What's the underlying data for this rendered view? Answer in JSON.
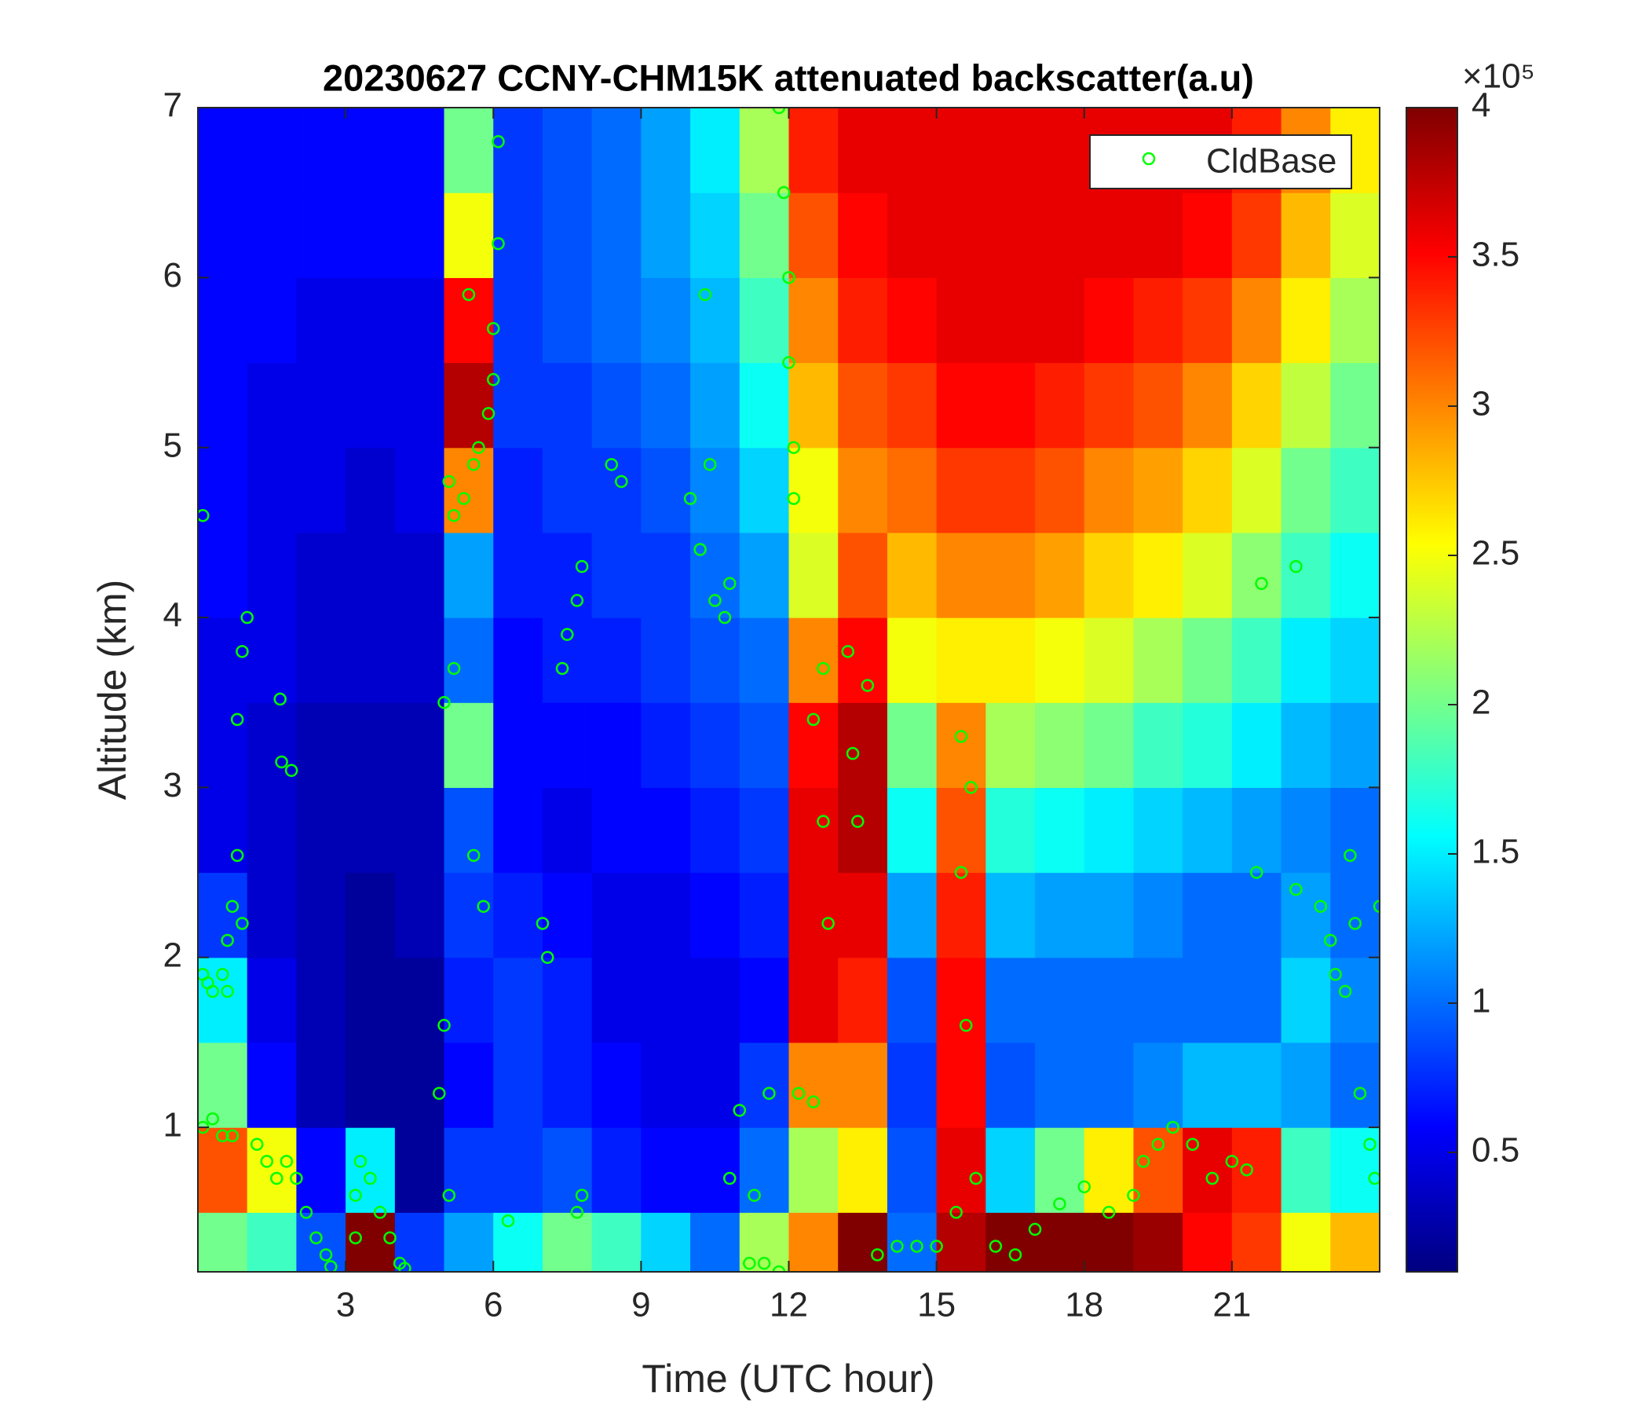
{
  "chart_data": {
    "type": "heatmap",
    "title": "20230627 CCNY-CHM15K attenuated backscatter(a.u)",
    "xlabel": "Time (UTC hour)",
    "ylabel": "Altitude (km)",
    "colorbar_multiplier": "×10⁵",
    "xlim": [
      0,
      24
    ],
    "xticks": [
      3,
      6,
      9,
      12,
      15,
      18,
      21
    ],
    "ylim": [
      0.15,
      7
    ],
    "yticks": [
      1,
      2,
      3,
      4,
      5,
      6,
      7
    ],
    "clim": [
      0.1,
      4
    ],
    "cticks": [
      0.5,
      1,
      1.5,
      2,
      2.5,
      3,
      3.5,
      4
    ],
    "colormap": "jet",
    "legend": "upper right",
    "x": [
      0.5,
      1.5,
      2.5,
      3.5,
      4.5,
      5.5,
      6.5,
      7.5,
      8.5,
      9.5,
      10.5,
      11.5,
      12.5,
      13.5,
      14.5,
      15.5,
      16.5,
      17.5,
      18.5,
      19.5,
      20.5,
      21.5,
      22.5,
      23.5
    ],
    "y": [
      0.25,
      0.75,
      1.25,
      1.75,
      2.25,
      2.75,
      3.25,
      3.75,
      4.25,
      4.75,
      5.25,
      5.75,
      6.25,
      6.75
    ],
    "z": [
      [
        2.0,
        1.8,
        0.9,
        4.0,
        0.8,
        1.2,
        1.6,
        2.0,
        1.8,
        1.4,
        1.0,
        2.2,
        3.0,
        4.0,
        1.0,
        3.8,
        4.0,
        4.0,
        4.0,
        3.9,
        3.5,
        3.3,
        2.5,
        2.8
      ],
      [
        3.2,
        2.5,
        0.6,
        1.5,
        0.2,
        0.8,
        0.8,
        0.9,
        0.7,
        0.6,
        0.6,
        1.0,
        2.2,
        2.6,
        0.9,
        3.6,
        1.4,
        2.0,
        2.6,
        3.2,
        3.6,
        3.4,
        1.8,
        1.6
      ],
      [
        2.0,
        0.6,
        0.3,
        0.2,
        0.2,
        0.6,
        0.8,
        0.7,
        0.6,
        0.5,
        0.5,
        0.8,
        3.0,
        3.0,
        0.8,
        3.5,
        0.9,
        1.0,
        1.0,
        1.1,
        1.3,
        1.3,
        1.2,
        1.0
      ],
      [
        1.5,
        0.5,
        0.3,
        0.2,
        0.2,
        0.7,
        0.8,
        0.7,
        0.5,
        0.5,
        0.5,
        0.6,
        3.6,
        3.4,
        0.9,
        3.5,
        1.0,
        1.0,
        1.0,
        1.0,
        1.0,
        1.0,
        1.4,
        1.1
      ],
      [
        0.8,
        0.4,
        0.3,
        0.2,
        0.3,
        0.8,
        0.7,
        0.6,
        0.5,
        0.5,
        0.6,
        0.7,
        3.6,
        3.6,
        1.2,
        3.4,
        1.3,
        1.2,
        1.2,
        1.1,
        1.0,
        1.0,
        1.2,
        1.0
      ],
      [
        0.5,
        0.4,
        0.3,
        0.3,
        0.3,
        0.9,
        0.6,
        0.5,
        0.6,
        0.6,
        0.7,
        0.8,
        3.6,
        3.8,
        1.6,
        3.2,
        1.7,
        1.6,
        1.5,
        1.4,
        1.3,
        1.2,
        1.1,
        1.0
      ],
      [
        0.5,
        0.4,
        0.3,
        0.3,
        0.3,
        2.0,
        0.6,
        0.6,
        0.6,
        0.7,
        0.8,
        0.9,
        3.5,
        3.8,
        2.0,
        3.0,
        2.2,
        2.1,
        2.0,
        1.8,
        1.7,
        1.5,
        1.3,
        1.2
      ],
      [
        0.5,
        0.5,
        0.4,
        0.4,
        0.4,
        1.0,
        0.6,
        0.7,
        0.7,
        0.8,
        0.9,
        1.0,
        3.0,
        3.5,
        2.5,
        2.6,
        2.6,
        2.5,
        2.4,
        2.2,
        2.0,
        1.8,
        1.5,
        1.4
      ],
      [
        0.6,
        0.5,
        0.4,
        0.4,
        0.4,
        1.2,
        0.7,
        0.7,
        0.8,
        0.8,
        1.0,
        1.2,
        2.4,
        3.2,
        2.8,
        3.0,
        3.0,
        2.9,
        2.7,
        2.6,
        2.4,
        2.1,
        1.8,
        1.6
      ],
      [
        0.6,
        0.5,
        0.5,
        0.4,
        0.5,
        3.0,
        0.7,
        0.8,
        0.8,
        0.9,
        1.1,
        1.4,
        2.5,
        3.0,
        3.1,
        3.3,
        3.3,
        3.2,
        3.0,
        2.9,
        2.7,
        2.4,
        2.0,
        1.8
      ],
      [
        0.6,
        0.5,
        0.5,
        0.5,
        0.5,
        3.8,
        0.8,
        0.8,
        0.9,
        1.0,
        1.2,
        1.6,
        2.8,
        3.2,
        3.3,
        3.5,
        3.5,
        3.4,
        3.3,
        3.2,
        3.0,
        2.7,
        2.3,
        2.0
      ],
      [
        0.6,
        0.6,
        0.5,
        0.5,
        0.5,
        3.5,
        0.8,
        0.9,
        1.0,
        1.1,
        1.3,
        1.8,
        3.0,
        3.4,
        3.5,
        3.6,
        3.6,
        3.6,
        3.5,
        3.4,
        3.3,
        3.0,
        2.6,
        2.2
      ],
      [
        0.6,
        0.6,
        0.6,
        0.6,
        0.6,
        2.5,
        0.8,
        0.9,
        1.0,
        1.2,
        1.4,
        2.0,
        3.2,
        3.5,
        3.6,
        3.6,
        3.6,
        3.6,
        3.6,
        3.6,
        3.5,
        3.3,
        2.8,
        2.4
      ],
      [
        0.6,
        0.6,
        0.6,
        0.6,
        0.6,
        2.0,
        0.8,
        0.9,
        1.0,
        1.2,
        1.5,
        2.2,
        3.4,
        3.6,
        3.6,
        3.6,
        3.6,
        3.6,
        3.6,
        3.6,
        3.6,
        3.4,
        3.0,
        2.6
      ]
    ],
    "series": [
      {
        "name": "CldBase",
        "color": "#00ff00",
        "x": [
          0.1,
          0.2,
          0.3,
          0.5,
          0.6,
          0.7,
          0.6,
          0.1,
          0.3,
          0.5,
          0.7,
          0.8,
          0.9,
          1.0,
          0.8,
          0.9,
          0.1,
          1.2,
          1.4,
          1.6,
          1.7,
          1.9,
          1.8,
          2.0,
          1.67,
          2.2,
          2.4,
          2.6,
          2.7,
          3.2,
          3.3,
          3.5,
          3.7,
          3.9,
          4.1,
          4.2,
          3.2,
          4.9,
          5.0,
          5.0,
          5.1,
          5.2,
          5.1,
          5.2,
          5.4,
          5.6,
          5.7,
          5.9,
          6.0,
          6.0,
          6.1,
          6.1,
          5.5,
          5.6,
          5.8,
          6.3,
          7.0,
          7.1,
          7.4,
          7.5,
          7.7,
          7.8,
          7.7,
          7.8,
          8.4,
          8.6,
          10.0,
          10.2,
          10.3,
          10.4,
          10.5,
          10.7,
          10.8,
          11.0,
          10.8,
          11.2,
          11.3,
          11.5,
          11.6,
          11.8,
          11.8,
          11.9,
          12.0,
          12.0,
          12.1,
          12.1,
          12.2,
          12.5,
          12.7,
          12.5,
          12.8,
          12.7,
          13.2,
          13.3,
          13.4,
          13.6,
          13.8,
          14.2,
          14.6,
          15.0,
          15.4,
          15.5,
          15.7,
          15.5,
          15.6,
          15.8,
          16.2,
          16.6,
          17.0,
          17.5,
          18.0,
          18.5,
          19.0,
          19.2,
          19.5,
          19.8,
          20.2,
          20.6,
          21.0,
          21.3,
          21.5,
          21.6,
          22.3,
          22.3,
          22.8,
          23.0,
          23.1,
          23.3,
          23.5,
          23.4,
          23.6,
          23.8,
          23.9,
          24.0
        ],
        "y": [
          1.9,
          1.85,
          1.8,
          1.9,
          2.1,
          2.3,
          1.8,
          1.0,
          1.05,
          0.95,
          0.95,
          3.4,
          3.8,
          4.0,
          2.6,
          2.2,
          4.6,
          0.9,
          0.8,
          0.7,
          3.15,
          3.1,
          0.8,
          0.7,
          3.52,
          0.5,
          0.35,
          0.25,
          0.18,
          0.6,
          0.8,
          0.7,
          0.5,
          0.35,
          0.2,
          0.17,
          0.35,
          1.2,
          1.6,
          3.5,
          0.6,
          3.7,
          4.8,
          4.6,
          4.7,
          4.9,
          5.0,
          5.2,
          5.4,
          5.7,
          6.2,
          6.8,
          5.9,
          2.6,
          2.3,
          0.45,
          2.2,
          2.0,
          3.7,
          3.9,
          4.1,
          4.3,
          0.5,
          0.6,
          4.9,
          4.8,
          4.7,
          4.4,
          5.9,
          4.9,
          4.1,
          4.0,
          4.2,
          1.1,
          0.7,
          0.2,
          0.6,
          0.2,
          1.2,
          0.15,
          7.0,
          6.5,
          6.0,
          5.5,
          5.0,
          4.7,
          1.2,
          1.15,
          3.7,
          3.4,
          2.2,
          2.8,
          3.8,
          3.2,
          2.8,
          3.6,
          0.25,
          0.3,
          0.3,
          0.3,
          0.5,
          3.3,
          3.0,
          2.5,
          1.6,
          0.7,
          0.3,
          0.25,
          0.4,
          0.55,
          0.65,
          0.5,
          0.6,
          0.8,
          0.9,
          1.0,
          0.9,
          0.7,
          0.8,
          0.75,
          2.5,
          4.2,
          4.3,
          2.4,
          2.3,
          2.1,
          1.9,
          1.8,
          2.2,
          2.6,
          1.2,
          0.9,
          0.7,
          2.3
        ]
      }
    ]
  }
}
